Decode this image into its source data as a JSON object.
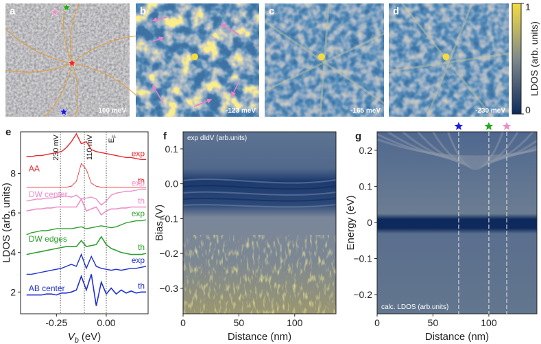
{
  "chart_data": [
    {
      "type": "image-map",
      "panels": [
        {
          "label": "a",
          "annotation": "100 meV"
        },
        {
          "label": "b",
          "annotation": "-123 meV"
        },
        {
          "label": "c",
          "annotation": "-165 meV"
        },
        {
          "label": "d",
          "annotation": "-230 meV"
        }
      ],
      "colorbar": {
        "label": "LDOS (arb. units)",
        "lim": [
          0,
          1
        ],
        "ticks": [
          0,
          1
        ],
        "colors": [
          "#0d2b5e",
          "#7f8a8c",
          "#f4dc3f"
        ]
      }
    },
    {
      "type": "line",
      "panel": "e",
      "xlabel": "V",
      "xlabel_sub": "b",
      "xlabel_unit": "(eV)",
      "ylabel": "LDOS (arb. units)",
      "xlim": [
        -0.43,
        0.21
      ],
      "xticks": [
        {
          "value": -0.25,
          "label": "-0.25"
        },
        {
          "value": 0,
          "label": "0.00"
        }
      ],
      "ylim": [
        0.9,
        10.1
      ],
      "yticks": [
        2,
        4,
        6,
        8
      ],
      "vlines": [
        {
          "x": -0.23,
          "label": "230 mV"
        },
        {
          "x": -0.11,
          "label": "110 mV"
        },
        {
          "x": 0,
          "label": "E",
          "label_sub": "F"
        }
      ],
      "x": [
        -0.4,
        -0.375,
        -0.35,
        -0.325,
        -0.3,
        -0.275,
        -0.25,
        -0.225,
        -0.2,
        -0.175,
        -0.15,
        -0.125,
        -0.1,
        -0.075,
        -0.05,
        -0.025,
        0,
        0.025,
        0.05,
        0.075,
        0.1,
        0.125,
        0.15,
        0.175,
        0.2
      ],
      "groups": [
        {
          "name": "AA",
          "color": "#e8262a",
          "series": [
            {
              "name": "exp",
              "values": [
                8.85,
                8.85,
                8.9,
                8.9,
                8.95,
                9.0,
                9.05,
                9.1,
                9.3,
                9.6,
                10.0,
                9.5,
                9.6,
                9.2,
                9.1,
                9.05,
                9.0,
                8.95,
                8.9,
                8.85,
                8.8,
                8.8,
                8.75,
                8.7,
                8.7
              ]
            },
            {
              "name": "th",
              "values": [
                7.3,
                7.3,
                7.3,
                7.3,
                7.3,
                7.3,
                7.3,
                7.3,
                7.3,
                7.35,
                7.6,
                8.5,
                8.2,
                7.5,
                7.35,
                7.3,
                7.3,
                7.3,
                7.3,
                7.3,
                7.3,
                7.3,
                7.3,
                7.3,
                7.3
              ]
            }
          ]
        },
        {
          "name": "DW center",
          "color": "#ec8ec8",
          "series": [
            {
              "name": "exp",
              "values": [
                6.6,
                6.65,
                6.7,
                6.7,
                6.75,
                6.75,
                6.8,
                6.85,
                6.85,
                6.8,
                6.9,
                6.7,
                6.75,
                6.8,
                6.7,
                6.4,
                6.6,
                6.9,
                7.0,
                7.05,
                7.1,
                7.1,
                7.15,
                7.2,
                7.2
              ]
            },
            {
              "name": "th",
              "values": [
                6.1,
                6.15,
                6.2,
                6.2,
                6.25,
                6.25,
                6.3,
                6.3,
                6.3,
                6.3,
                6.3,
                6.7,
                6.1,
                6.2,
                6.3,
                5.9,
                6.1,
                6.2,
                6.2,
                6.25,
                6.25,
                6.3,
                6.3,
                6.3,
                6.3
              ]
            }
          ]
        },
        {
          "name": "DW edges",
          "color": "#2ca02c",
          "series": [
            {
              "name": "exp",
              "values": [
                4.9,
                5.0,
                5.05,
                5.1,
                5.1,
                5.15,
                5.2,
                5.2,
                5.2,
                5.2,
                5.25,
                5.3,
                5.2,
                5.25,
                5.3,
                5.35,
                5.3,
                5.25,
                5.3,
                5.4,
                5.5,
                5.55,
                5.6,
                5.6,
                5.65
              ]
            },
            {
              "name": "th",
              "values": [
                3.9,
                3.95,
                4.0,
                4.05,
                4.1,
                4.15,
                4.2,
                4.25,
                4.3,
                4.3,
                4.3,
                4.6,
                4.3,
                4.35,
                4.4,
                4.8,
                4.4,
                4.2,
                4.1,
                4.0,
                3.95,
                3.9,
                3.9,
                3.9,
                3.95
              ]
            }
          ]
        },
        {
          "name": "AB center",
          "color": "#1f2fd0",
          "series": [
            {
              "name": "exp",
              "values": [
                2.9,
                2.9,
                2.95,
                3.0,
                3.05,
                3.1,
                3.15,
                3.2,
                3.3,
                3.4,
                3.3,
                3.9,
                3.2,
                3.8,
                3.3,
                3.2,
                3.15,
                3.1,
                3.15,
                3.1,
                3.15,
                3.2,
                3.2,
                3.25,
                3.3
              ]
            },
            {
              "name": "th",
              "values": [
                1.85,
                1.85,
                1.85,
                1.85,
                1.9,
                1.9,
                1.85,
                1.95,
                1.95,
                2.0,
                2.1,
                2.8,
                2.1,
                2.9,
                1.3,
                2.5,
                1.9,
                2.2,
                1.9,
                2.1,
                1.95,
                2.05,
                1.95,
                2.0,
                2.0
              ]
            }
          ]
        }
      ]
    },
    {
      "type": "heatmap",
      "panel": "f",
      "annotation": "exp dIdV (arb.units)",
      "xlabel": "Distance (nm)",
      "ylabel": "Bias (V)",
      "xlim": [
        0,
        137
      ],
      "xticks": [
        0,
        50,
        100
      ],
      "ylim": [
        -0.373,
        0.149
      ],
      "yticks": [
        0.1,
        {
          "value": 0,
          "label": "0.0"
        },
        {
          "value": -0.1,
          "label": "−0.1"
        },
        {
          "value": -0.2,
          "label": "−0.2"
        },
        {
          "value": -0.3,
          "label": "−0.3"
        }
      ]
    },
    {
      "type": "heatmap",
      "panel": "g",
      "annotation": "calc. LDOS (arb.units)",
      "xlabel": "Distance (nm)",
      "ylabel": "Energy (eV)",
      "xlim": [
        0,
        143
      ],
      "xticks": [
        0,
        50,
        100
      ],
      "ylim": [
        -0.253,
        0.251
      ],
      "yticks": [
        0.2,
        0.1,
        0,
        {
          "value": -0.1,
          "label": "−0.1"
        },
        {
          "value": -0.2,
          "label": "−0.2"
        }
      ],
      "markers": [
        {
          "x": 73,
          "color": "#1a1ae6"
        },
        {
          "x": 100,
          "color": "#22aa22"
        },
        {
          "x": 116,
          "color": "#f08cc8"
        }
      ]
    }
  ]
}
